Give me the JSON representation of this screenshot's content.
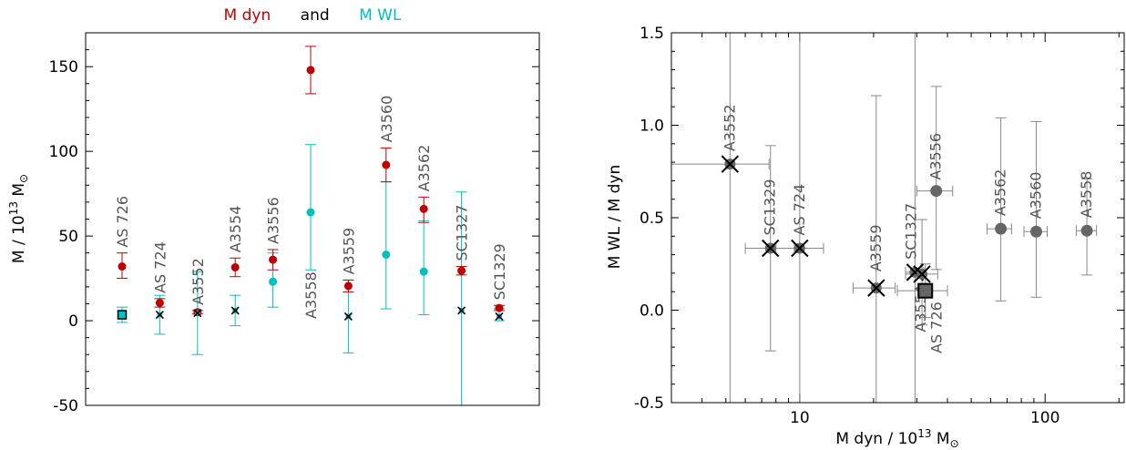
{
  "colors": {
    "dyn": "#c00000",
    "wl": "#00c0c0",
    "gray": "#555555",
    "errgray": "#888888"
  },
  "chart_data": [
    {
      "type": "scatter",
      "title_parts": [
        {
          "text": "M dyn",
          "color": "#c00000"
        },
        {
          "text": "and",
          "color": "#000000"
        },
        {
          "text": "M WL",
          "color": "#00c0c0"
        }
      ],
      "ylabel_main": "M / 10",
      "ylabel_sup": "13",
      "ylabel_tail": " M",
      "ylabel_sub": "⊙",
      "ylim": [
        -50,
        170
      ],
      "yticks": [
        -50,
        0,
        50,
        100,
        150
      ],
      "ytick_labels": [
        "-50",
        "0",
        "50",
        "100",
        "150"
      ],
      "clusters": [
        {
          "name": "AS 726",
          "label_pos": "above",
          "dyn": 32,
          "dyn_lo": 25,
          "dyn_hi": 40,
          "wl": 3.5,
          "wl_lo": -1,
          "wl_hi": 8,
          "wl_marker": "square"
        },
        {
          "name": "AS 724",
          "label_pos": "above",
          "dyn": 10.5,
          "dyn_lo": 8,
          "dyn_hi": 13,
          "wl": 3.5,
          "wl_lo": -8,
          "wl_hi": 15,
          "wl_marker": "x"
        },
        {
          "name": "A3552",
          "label_pos": "above",
          "dyn": 5,
          "dyn_lo": 4,
          "dyn_hi": 6,
          "wl": 4.5,
          "wl_lo": -20,
          "wl_hi": 29,
          "wl_marker": "x"
        },
        {
          "name": "A3554",
          "label_pos": "above",
          "dyn": 31.5,
          "dyn_lo": 26,
          "dyn_hi": 37,
          "wl": 6,
          "wl_lo": -3,
          "wl_hi": 15,
          "wl_marker": "x"
        },
        {
          "name": "A3556",
          "label_pos": "above",
          "dyn": 36,
          "dyn_lo": 30,
          "dyn_hi": 42,
          "wl": 23,
          "wl_lo": 8,
          "wl_hi": 40,
          "wl_marker": "dot"
        },
        {
          "name": "A3558",
          "label_pos": "below",
          "dyn": 148,
          "dyn_lo": 134,
          "dyn_hi": 162,
          "wl": 64,
          "wl_lo": 30,
          "wl_hi": 104,
          "wl_marker": "dot"
        },
        {
          "name": "A3559",
          "label_pos": "above",
          "dyn": 20.5,
          "dyn_lo": 17,
          "dyn_hi": 24,
          "wl": 2.5,
          "wl_lo": -19,
          "wl_hi": 24,
          "wl_marker": "x"
        },
        {
          "name": "A3560",
          "label_pos": "above",
          "dyn": 92,
          "dyn_lo": 82,
          "dyn_hi": 102,
          "wl": 39,
          "wl_lo": 7,
          "wl_hi": 82,
          "wl_marker": "dot"
        },
        {
          "name": "A3562",
          "label_pos": "above",
          "dyn": 66,
          "dyn_lo": 58,
          "dyn_hi": 73,
          "wl": 29,
          "wl_lo": 3.5,
          "wl_hi": 59,
          "wl_marker": "dot"
        },
        {
          "name": "SC1327",
          "label_pos": "above",
          "dyn": 29.5,
          "dyn_lo": 27,
          "dyn_hi": 32,
          "wl": 6,
          "wl_lo": -50,
          "wl_hi": 76,
          "wl_marker": "x"
        },
        {
          "name": "SC1329",
          "label_pos": "above",
          "dyn": 7.5,
          "dyn_lo": 6,
          "dyn_hi": 9,
          "wl": 2.5,
          "wl_lo": 0,
          "wl_hi": 7,
          "wl_marker": "x"
        }
      ]
    },
    {
      "type": "scatter",
      "xscale": "log",
      "xlabel_main": "M dyn / 10",
      "xlabel_sup": "13",
      "xlabel_tail": " M",
      "xlabel_sub": "⊙",
      "ylabel": "M WL / M dyn",
      "xlim": [
        3,
        210
      ],
      "ylim": [
        -0.5,
        1.5
      ],
      "xticks": [
        10,
        100
      ],
      "xtick_labels": [
        "10",
        "100"
      ],
      "yticks": [
        -0.5,
        0,
        0.5,
        1,
        1.5
      ],
      "ytick_labels": [
        "-0.5",
        "0.0",
        "0.5",
        "1.0",
        "1.5"
      ],
      "points": [
        {
          "name": "A3552",
          "x": 5.2,
          "x_lo": 2.7,
          "x_hi": 7.5,
          "y": 0.79,
          "y_lo": -0.5,
          "y_hi": 1.5,
          "marker": "x",
          "label_pos": "above"
        },
        {
          "name": "SC1329",
          "x": 7.6,
          "x_lo": 6.0,
          "x_hi": 9.5,
          "y": 0.335,
          "y_lo": -0.22,
          "y_hi": 0.89,
          "marker": "x",
          "label_pos": "above"
        },
        {
          "name": "AS 724",
          "x": 10.0,
          "x_lo": 8.0,
          "x_hi": 12.5,
          "y": 0.335,
          "y_lo": -0.5,
          "y_hi": 1.5,
          "marker": "x",
          "label_pos": "above"
        },
        {
          "name": "A3559",
          "x": 20.5,
          "x_lo": 16.5,
          "x_hi": 24.5,
          "y": 0.12,
          "y_lo": -0.5,
          "y_hi": 1.16,
          "marker": "x",
          "label_pos": "above"
        },
        {
          "name": "SC1327",
          "x": 29.5,
          "x_lo": 27.0,
          "x_hi": 32.0,
          "y": 0.205,
          "y_lo": -0.5,
          "y_hi": 1.5,
          "marker": "x",
          "label_pos": "above"
        },
        {
          "name": "A3554",
          "x": 31.5,
          "x_lo": 27.0,
          "x_hi": 36.5,
          "y": 0.195,
          "y_lo": -0.08,
          "y_hi": 0.49,
          "marker": "x",
          "label_pos": "below"
        },
        {
          "name": "AS 726",
          "x": 32.5,
          "x_lo": 25.0,
          "x_hi": 40.0,
          "y": 0.105,
          "y_lo": -0.04,
          "y_hi": 0.25,
          "marker": "square",
          "label_pos": "below"
        },
        {
          "name": "A3556",
          "x": 36.0,
          "x_lo": 30.0,
          "x_hi": 42.0,
          "y": 0.645,
          "y_lo": 0.22,
          "y_hi": 1.21,
          "marker": "dot",
          "label_pos": "above"
        },
        {
          "name": "A3562",
          "x": 66.0,
          "x_lo": 58.0,
          "x_hi": 73.0,
          "y": 0.44,
          "y_lo": 0.05,
          "y_hi": 1.04,
          "marker": "dot",
          "label_pos": "above"
        },
        {
          "name": "A3560",
          "x": 92.0,
          "x_lo": 82.0,
          "x_hi": 102.0,
          "y": 0.425,
          "y_lo": 0.07,
          "y_hi": 1.02,
          "marker": "dot",
          "label_pos": "above"
        },
        {
          "name": "A3558",
          "x": 148.0,
          "x_lo": 134.0,
          "x_hi": 162.0,
          "y": 0.43,
          "y_lo": 0.19,
          "y_hi": 0.71,
          "marker": "dot",
          "label_pos": "above"
        }
      ]
    }
  ]
}
